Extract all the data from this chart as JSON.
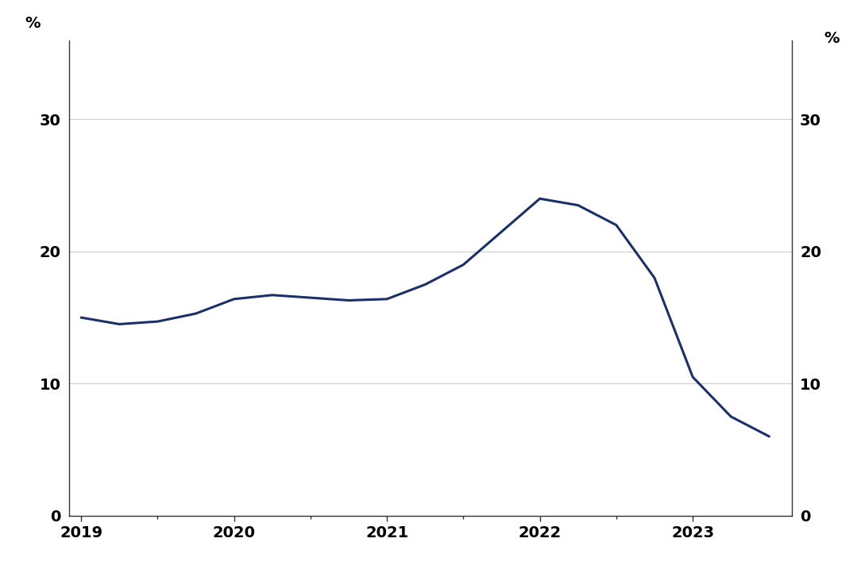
{
  "x_values": [
    2019.0,
    2019.25,
    2019.5,
    2019.75,
    2020.0,
    2020.25,
    2020.5,
    2020.75,
    2021.0,
    2021.25,
    2021.5,
    2021.75,
    2022.0,
    2022.25,
    2022.5,
    2022.75,
    2023.0,
    2023.25,
    2023.5
  ],
  "y_values": [
    15.0,
    14.5,
    14.7,
    15.3,
    16.4,
    16.7,
    16.5,
    16.3,
    16.4,
    17.5,
    19.0,
    21.5,
    24.0,
    23.5,
    22.0,
    18.0,
    10.5,
    7.5,
    6.0
  ],
  "line_color": "#1a2f6b",
  "line_width": 2.2,
  "y_min": 0,
  "y_max": 36,
  "y_ticks": [
    0,
    10,
    20,
    30
  ],
  "x_min": 2018.92,
  "x_max": 2023.65,
  "x_ticks": [
    2019,
    2020,
    2021,
    2022,
    2023
  ],
  "ylabel_left": "%",
  "ylabel_right": "%",
  "background_color": "#ffffff",
  "plot_background": "#ffffff",
  "grid_color": "#cccccc",
  "spine_color": "#333333",
  "tick_fontsize": 14,
  "label_fontsize": 14
}
